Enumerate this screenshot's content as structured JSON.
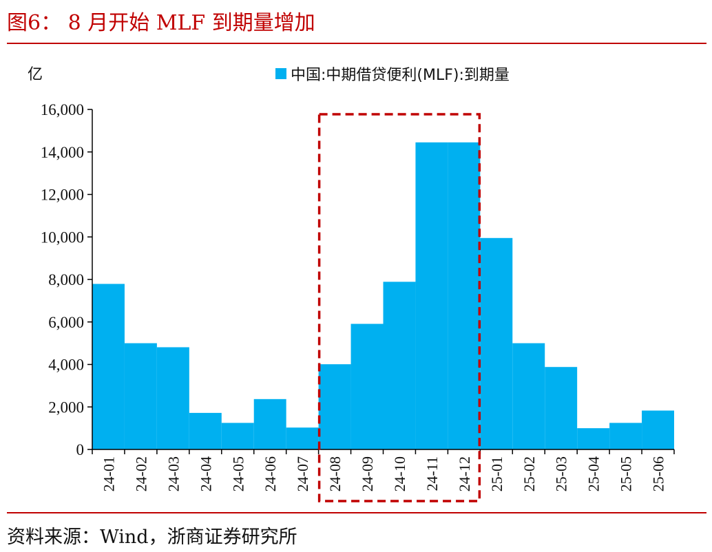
{
  "figure": {
    "title": "图6： 8 月开始 MLF 到期量增加",
    "source": "资料来源：Wind，浙商证券研究所"
  },
  "chart_data": {
    "type": "bar",
    "ylabel": "亿",
    "ylim": [
      0,
      16000
    ],
    "yticks": [
      "0",
      "2,000",
      "4,000",
      "6,000",
      "8,000",
      "10,000",
      "12,000",
      "14,000",
      "16,000"
    ],
    "ytick_values": [
      0,
      2000,
      4000,
      6000,
      8000,
      10000,
      12000,
      14000,
      16000
    ],
    "categories": [
      "24-01",
      "24-02",
      "24-03",
      "24-04",
      "24-05",
      "24-06",
      "24-07",
      "24-08",
      "24-09",
      "24-10",
      "24-11",
      "24-12",
      "25-01",
      "25-02",
      "25-03",
      "25-04",
      "25-05",
      "25-06"
    ],
    "series": [
      {
        "name": "中国:中期借贷便利(MLF):到期量",
        "color": "#00b0f0",
        "values": [
          7790,
          5000,
          4810,
          1720,
          1250,
          2370,
          1030,
          4010,
          5910,
          7890,
          14450,
          14450,
          9950,
          5000,
          3880,
          1000,
          1250,
          1830
        ]
      }
    ],
    "legend_position": "top-right",
    "grid": false,
    "highlight": {
      "from": "24-08",
      "to": "24-12",
      "style": "dashed",
      "color": "#c00000"
    }
  }
}
